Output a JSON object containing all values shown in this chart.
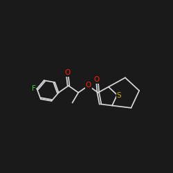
{
  "background_color": "#1a1a1a",
  "bond_color": "#d8d8d8",
  "atom_colors": {
    "O": "#ff2200",
    "S": "#ccaa00",
    "F": "#33cc33",
    "C": "#d8d8d8"
  },
  "figsize": [
    2.5,
    2.5
  ],
  "dpi": 100
}
